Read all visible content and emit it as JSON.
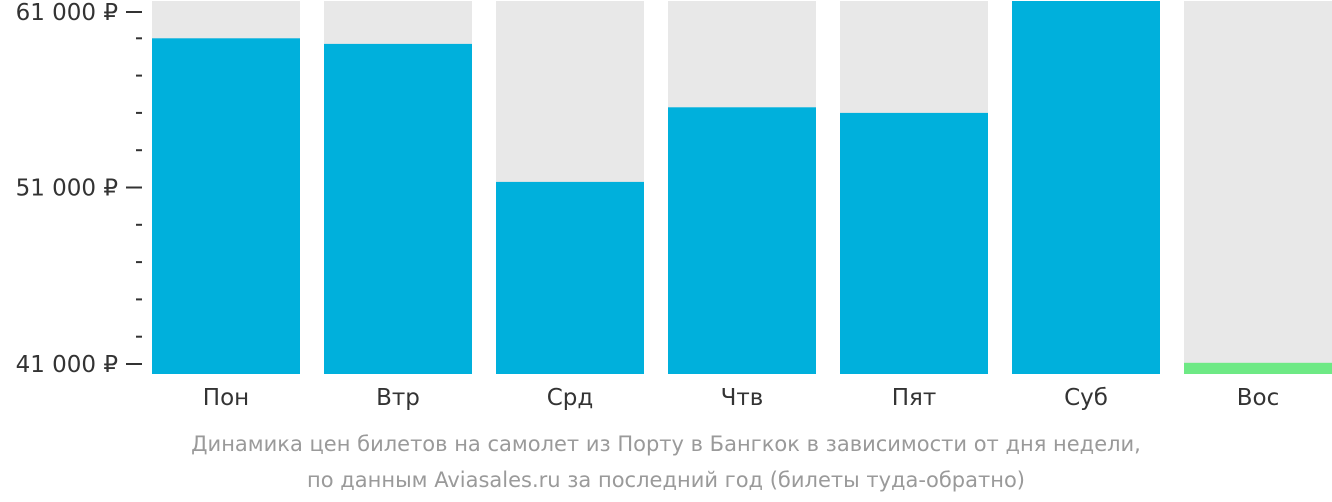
{
  "chart_data": {
    "type": "bar",
    "categories": [
      "Пон",
      "Втр",
      "Срд",
      "Чтв",
      "Пят",
      "Суб",
      "Вос"
    ],
    "values": [
      59000,
      58700,
      51300,
      55300,
      55000,
      61000,
      41600
    ],
    "ylim": [
      41000,
      61000
    ],
    "y_ticks": [
      41000,
      51000,
      61000
    ],
    "y_tick_labels": [
      "41 000 ₽",
      "51 000 ₽",
      "61 000 ₽"
    ],
    "minor_tick_step": 2000,
    "grid": false,
    "colors": {
      "bar": "#00b0dc",
      "bar_min": "#6ee985",
      "background": "#e8e8e8",
      "axis_text": "#333333",
      "caption": "#9a9a9a"
    },
    "caption_line1": "Динамика цен билетов на самолет из Порту в Бангкок в зависимости от дня недели,",
    "caption_line2": "по данным Aviasales.ru за последний год (билеты туда-обратно)"
  }
}
